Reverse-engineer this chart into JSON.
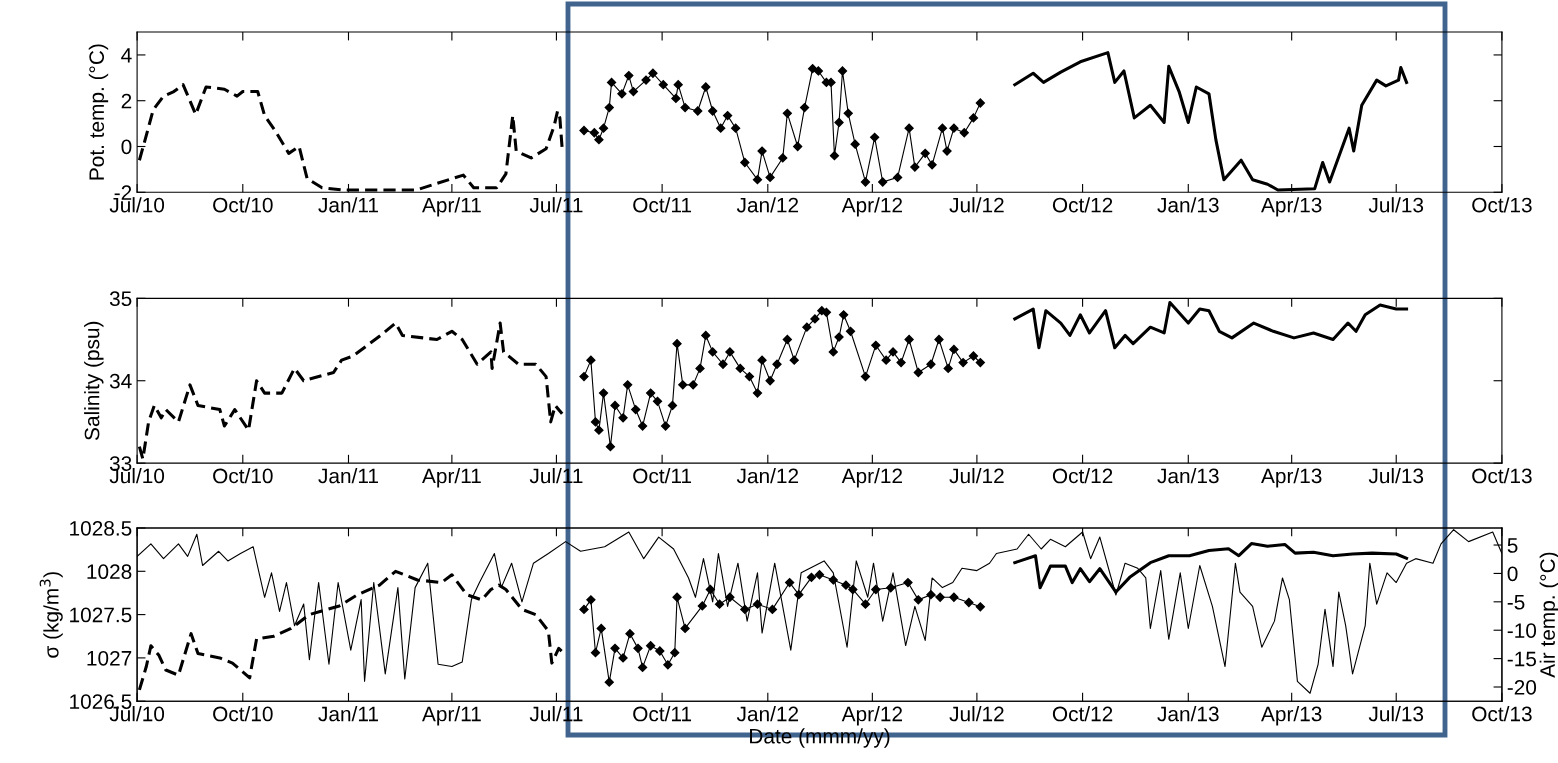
{
  "chart_data": [
    {
      "type": "line",
      "ylabel": "Pot. temp. (°C)",
      "xlim": [
        "2010-07-01",
        "2013-10-01"
      ],
      "ylim": [
        -2,
        5
      ],
      "yticks": [
        -2,
        0,
        2,
        4
      ],
      "xticks": [
        {
          "value": "2010-07-01",
          "label": "Jul/10"
        },
        {
          "value": "2010-10-01",
          "label": "Oct/10"
        },
        {
          "value": "2011-01-01",
          "label": "Jan/11"
        },
        {
          "value": "2011-04-01",
          "label": "Apr/11"
        },
        {
          "value": "2011-07-01",
          "label": "Jul/11"
        },
        {
          "value": "2011-10-01",
          "label": "Oct/11"
        },
        {
          "value": "2012-01-01",
          "label": "Jan/12"
        },
        {
          "value": "2012-04-01",
          "label": "Apr/12"
        },
        {
          "value": "2012-07-01",
          "label": "Jul/12"
        },
        {
          "value": "2012-10-01",
          "label": "Oct/12"
        },
        {
          "value": "2013-01-01",
          "label": "Jan/13"
        },
        {
          "value": "2013-04-01",
          "label": "Apr/13"
        },
        {
          "value": "2013-07-01",
          "label": "Jul/13"
        },
        {
          "value": "2013-10-01",
          "label": "Oct/13"
        }
      ],
      "grid": false,
      "legend": false,
      "series": [
        {
          "color": "#000000",
          "line_style": "dashed",
          "marker": "none",
          "x": [
            "2010-07-03",
            "2010-07-08",
            "2010-07-15",
            "2010-07-24",
            "2010-08-02",
            "2010-08-10",
            "2010-08-16",
            "2010-08-21",
            "2010-08-30",
            "2010-09-15",
            "2010-09-26",
            "2010-10-01",
            "2010-10-14",
            "2010-10-20",
            "2010-10-29",
            "2010-11-10",
            "2010-11-19",
            "2010-11-26",
            "2010-12-09",
            "2010-12-27",
            "2011-03-01",
            "2011-04-11",
            "2011-04-20",
            "2011-05-10",
            "2011-05-18",
            "2011-05-24",
            "2011-05-27",
            "2011-06-09",
            "2011-06-22",
            "2011-06-29",
            "2011-07-02",
            "2011-07-04",
            "2011-07-06"
          ],
          "values": [
            -0.6,
            0.3,
            1.6,
            2.2,
            2.4,
            2.7,
            2.0,
            1.4,
            2.6,
            2.5,
            2.2,
            2.4,
            2.4,
            1.35,
            0.7,
            -0.3,
            0,
            -1.4,
            -1.8,
            -1.9,
            -1.9,
            -1.25,
            -1.8,
            -1.8,
            -1.2,
            1.35,
            -0.2,
            -0.5,
            -0.1,
            0.9,
            1.55,
            1.25,
            -0.1
          ]
        },
        {
          "color": "#000000",
          "line_style": "solid",
          "marker": "diamond",
          "x": [
            "2011-07-25",
            "2011-08-03",
            "2011-08-07",
            "2011-08-11",
            "2011-08-16",
            "2011-08-18",
            "2011-08-27",
            "2011-09-02",
            "2011-09-06",
            "2011-09-17",
            "2011-09-23",
            "2011-10-02",
            "2011-10-13",
            "2011-10-15",
            "2011-10-21",
            "2011-11-01",
            "2011-11-08",
            "2011-11-14",
            "2011-11-21",
            "2011-11-27",
            "2011-12-04",
            "2011-12-12",
            "2011-12-23",
            "2011-12-27",
            "2012-01-03",
            "2012-01-14",
            "2012-01-18",
            "2012-01-27",
            "2012-02-02",
            "2012-02-09",
            "2012-02-14",
            "2012-02-21",
            "2012-02-25",
            "2012-02-28",
            "2012-03-03",
            "2012-03-06",
            "2012-03-11",
            "2012-03-17",
            "2012-03-26",
            "2012-04-03",
            "2012-04-10",
            "2012-04-23",
            "2012-05-03",
            "2012-05-08",
            "2012-05-17",
            "2012-05-23",
            "2012-06-01",
            "2012-06-05",
            "2012-06-11",
            "2012-06-20",
            "2012-06-28",
            "2012-07-04"
          ],
          "values": [
            0.7,
            0.6,
            0.3,
            0.8,
            1.7,
            2.8,
            2.3,
            3.1,
            2.4,
            2.9,
            3.2,
            2.7,
            2.1,
            2.7,
            1.7,
            1.55,
            2.6,
            1.55,
            0.8,
            1.35,
            0.8,
            -0.7,
            -1.45,
            -0.2,
            -1.35,
            -0.5,
            1.45,
            0,
            1.7,
            3.4,
            3.3,
            2.8,
            2.8,
            -0.4,
            1.05,
            3.3,
            1.45,
            0.1,
            -1.55,
            0.4,
            -1.55,
            -1.35,
            0.8,
            -0.9,
            -0.3,
            -0.8,
            0.8,
            -0.2,
            0.8,
            0.6,
            1.25,
            1.9
          ]
        },
        {
          "color": "#000000",
          "line_style": "solid",
          "marker": "none",
          "x": [
            "2012-08-03",
            "2012-08-19",
            "2012-08-28",
            "2012-09-12",
            "2012-09-29",
            "2012-10-23",
            "2012-10-29",
            "2012-11-06",
            "2012-11-15",
            "2012-11-29",
            "2012-12-11",
            "2012-12-15",
            "2012-12-24",
            "2013-01-01",
            "2013-01-08",
            "2013-01-19",
            "2013-01-25",
            "2013-02-01",
            "2013-02-16",
            "2013-02-26",
            "2013-03-11",
            "2013-03-20",
            "2013-04-21",
            "2013-04-28",
            "2013-05-04",
            "2013-05-21",
            "2013-05-25",
            "2013-06-01",
            "2013-06-14",
            "2013-06-22",
            "2013-07-03",
            "2013-07-05",
            "2013-07-10"
          ],
          "values": [
            2.7,
            3.2,
            2.8,
            3.25,
            3.7,
            4.1,
            2.8,
            3.3,
            1.25,
            1.8,
            1.05,
            3.5,
            2.4,
            1.05,
            2.6,
            2.3,
            0.3,
            -1.45,
            -0.6,
            -1.45,
            -1.65,
            -1.9,
            -1.85,
            -0.7,
            -1.55,
            0.8,
            -0.2,
            1.8,
            2.9,
            2.65,
            2.9,
            3.45,
            2.8
          ]
        }
      ]
    },
    {
      "type": "line",
      "ylabel": "Salinity (psu)",
      "xlim": [
        "2010-07-01",
        "2013-10-01"
      ],
      "ylim": [
        33,
        35
      ],
      "yticks": [
        33,
        34,
        35
      ],
      "xticks": [
        {
          "value": "2010-07-01",
          "label": "Jul/10"
        },
        {
          "value": "2010-10-01",
          "label": "Oct/10"
        },
        {
          "value": "2011-01-01",
          "label": "Jan/11"
        },
        {
          "value": "2011-04-01",
          "label": "Apr/11"
        },
        {
          "value": "2011-07-01",
          "label": "Jul/11"
        },
        {
          "value": "2011-10-01",
          "label": "Oct/11"
        },
        {
          "value": "2012-01-01",
          "label": "Jan/12"
        },
        {
          "value": "2012-04-01",
          "label": "Apr/12"
        },
        {
          "value": "2012-07-01",
          "label": "Jul/12"
        },
        {
          "value": "2012-10-01",
          "label": "Oct/12"
        },
        {
          "value": "2013-01-01",
          "label": "Jan/13"
        },
        {
          "value": "2013-04-01",
          "label": "Apr/13"
        },
        {
          "value": "2013-07-01",
          "label": "Jul/13"
        },
        {
          "value": "2013-10-01",
          "label": "Oct/13"
        }
      ],
      "grid": false,
      "legend": false,
      "series": [
        {
          "color": "#000000",
          "line_style": "dashed",
          "marker": "none",
          "x": [
            "2010-07-03",
            "2010-07-06",
            "2010-07-11",
            "2010-07-16",
            "2010-07-22",
            "2010-07-26",
            "2010-08-06",
            "2010-08-16",
            "2010-08-23",
            "2010-09-11",
            "2010-09-15",
            "2010-09-24",
            "2010-10-06",
            "2010-10-13",
            "2010-10-20",
            "2010-11-04",
            "2010-11-15",
            "2010-11-23",
            "2010-12-19",
            "2010-12-26",
            "2011-01-05",
            "2011-01-29",
            "2011-02-11",
            "2011-02-17",
            "2011-03-19",
            "2011-04-01",
            "2011-04-10",
            "2011-04-23",
            "2011-05-05",
            "2011-05-06",
            "2011-05-13",
            "2011-05-16",
            "2011-05-29",
            "2011-06-13",
            "2011-06-22",
            "2011-06-26",
            "2011-06-30",
            "2011-07-06"
          ],
          "values": [
            33.2,
            33.05,
            33.5,
            33.7,
            33.55,
            33.65,
            33.5,
            33.95,
            33.7,
            33.65,
            33.45,
            33.65,
            33.4,
            34.0,
            33.85,
            33.85,
            34.15,
            34.0,
            34.1,
            34.25,
            34.3,
            34.55,
            34.7,
            34.55,
            34.5,
            34.6,
            34.5,
            34.2,
            34.35,
            34.15,
            34.7,
            34.35,
            34.2,
            34.2,
            34.05,
            33.5,
            33.7,
            33.6
          ]
        },
        {
          "color": "#000000",
          "line_style": "solid",
          "marker": "diamond",
          "x": [
            "2011-07-25",
            "2011-07-31",
            "2011-08-04",
            "2011-08-07",
            "2011-08-11",
            "2011-08-17",
            "2011-08-21",
            "2011-08-28",
            "2011-09-01",
            "2011-09-08",
            "2011-09-14",
            "2011-09-21",
            "2011-09-27",
            "2011-10-04",
            "2011-10-10",
            "2011-10-14",
            "2011-10-19",
            "2011-10-28",
            "2011-11-03",
            "2011-11-08",
            "2011-11-14",
            "2011-11-23",
            "2011-11-29",
            "2011-12-08",
            "2011-12-16",
            "2011-12-23",
            "2011-12-27",
            "2012-01-03",
            "2012-01-09",
            "2012-01-18",
            "2012-01-24",
            "2012-02-04",
            "2012-02-11",
            "2012-02-17",
            "2012-02-21",
            "2012-02-27",
            "2012-03-03",
            "2012-03-07",
            "2012-03-13",
            "2012-03-26",
            "2012-04-04",
            "2012-04-13",
            "2012-04-19",
            "2012-04-26",
            "2012-05-03",
            "2012-05-11",
            "2012-05-22",
            "2012-05-29",
            "2012-06-06",
            "2012-06-11",
            "2012-06-19",
            "2012-06-28",
            "2012-07-04"
          ],
          "values": [
            34.05,
            34.25,
            33.5,
            33.4,
            33.85,
            33.2,
            33.7,
            33.55,
            33.95,
            33.65,
            33.45,
            33.85,
            33.75,
            33.45,
            33.7,
            34.45,
            33.95,
            33.95,
            34.15,
            34.55,
            34.35,
            34.2,
            34.35,
            34.15,
            34.05,
            33.85,
            34.25,
            34.0,
            34.2,
            34.5,
            34.25,
            34.65,
            34.75,
            34.85,
            34.83,
            34.35,
            34.53,
            34.8,
            34.6,
            34.05,
            34.43,
            34.25,
            34.35,
            34.22,
            34.5,
            34.1,
            34.2,
            34.5,
            34.15,
            34.38,
            34.22,
            34.3,
            34.22
          ]
        },
        {
          "color": "#000000",
          "line_style": "solid",
          "marker": "none",
          "x": [
            "2012-08-03",
            "2012-08-19",
            "2012-08-24",
            "2012-08-30",
            "2012-09-12",
            "2012-09-20",
            "2012-09-29",
            "2012-10-07",
            "2012-10-21",
            "2012-10-29",
            "2012-11-07",
            "2012-11-14",
            "2012-11-29",
            "2012-12-11",
            "2012-12-16",
            "2013-01-01",
            "2013-01-11",
            "2013-01-19",
            "2013-01-28",
            "2013-02-08",
            "2013-02-27",
            "2013-03-16",
            "2013-04-03",
            "2013-04-20",
            "2013-05-07",
            "2013-05-20",
            "2013-05-27",
            "2013-06-04",
            "2013-06-17",
            "2013-07-01",
            "2013-07-10"
          ],
          "values": [
            34.75,
            34.87,
            34.4,
            34.85,
            34.7,
            34.55,
            34.8,
            34.58,
            34.85,
            34.4,
            34.55,
            34.45,
            34.65,
            34.58,
            34.95,
            34.7,
            34.87,
            34.85,
            34.6,
            34.52,
            34.7,
            34.6,
            34.52,
            34.58,
            34.5,
            34.7,
            34.6,
            34.8,
            34.92,
            34.87,
            34.87
          ]
        }
      ]
    },
    {
      "type": "line",
      "xlabel": "Date (mmm/yy)",
      "ylabel": "σ (kg/m$^{3}$)",
      "y2label": "Air temp. (°C)",
      "xlim": [
        "2010-07-01",
        "2013-10-01"
      ],
      "ylim": [
        1026.5,
        1028.5
      ],
      "yticks": [
        1026.5,
        1027,
        1027.5,
        1028,
        1028.5
      ],
      "y2lim": [
        -22.5,
        8
      ],
      "y2ticks": [
        -20,
        -15,
        -10,
        -5,
        0,
        5
      ],
      "xticks": [
        {
          "value": "2010-07-01",
          "label": "Jul/10"
        },
        {
          "value": "2010-10-01",
          "label": "Oct/10"
        },
        {
          "value": "2011-01-01",
          "label": "Jan/11"
        },
        {
          "value": "2011-04-01",
          "label": "Apr/11"
        },
        {
          "value": "2011-07-01",
          "label": "Jul/11"
        },
        {
          "value": "2011-10-01",
          "label": "Oct/11"
        },
        {
          "value": "2012-01-01",
          "label": "Jan/12"
        },
        {
          "value": "2012-04-01",
          "label": "Apr/12"
        },
        {
          "value": "2012-07-01",
          "label": "Jul/12"
        },
        {
          "value": "2012-10-01",
          "label": "Oct/12"
        },
        {
          "value": "2013-01-01",
          "label": "Jan/13"
        },
        {
          "value": "2013-04-01",
          "label": "Apr/13"
        },
        {
          "value": "2013-07-01",
          "label": "Jul/13"
        },
        {
          "value": "2013-10-01",
          "label": "Oct/13"
        }
      ],
      "grid": false,
      "legend": false,
      "series": [
        {
          "color": "#000000",
          "line_style": "dashed",
          "marker": "none",
          "x": [
            "2010-07-03",
            "2010-07-09",
            "2010-07-13",
            "2010-07-20",
            "2010-07-26",
            "2010-08-06",
            "2010-08-17",
            "2010-08-23",
            "2010-09-11",
            "2010-09-22",
            "2010-10-07",
            "2010-10-13",
            "2010-10-28",
            "2010-11-12",
            "2010-11-28",
            "2010-12-24",
            "2011-01-09",
            "2011-01-28",
            "2011-02-11",
            "2011-03-02",
            "2011-03-23",
            "2011-04-01",
            "2011-04-14",
            "2011-04-27",
            "2011-05-05",
            "2011-05-12",
            "2011-05-18",
            "2011-06-01",
            "2011-06-13",
            "2011-06-24",
            "2011-06-27",
            "2011-07-03",
            "2011-07-07"
          ],
          "values": [
            1026.63,
            1026.9,
            1027.14,
            1027.03,
            1026.86,
            1026.8,
            1027.28,
            1027.05,
            1027.0,
            1026.94,
            1026.77,
            1027.22,
            1027.25,
            1027.34,
            1027.5,
            1027.6,
            1027.73,
            1027.84,
            1028.0,
            1027.9,
            1027.87,
            1027.96,
            1027.73,
            1027.67,
            1027.79,
            1027.84,
            1027.79,
            1027.56,
            1027.5,
            1027.31,
            1026.94,
            1027.11,
            1027.06
          ]
        },
        {
          "color": "#000000",
          "line_style": "solid",
          "marker": "diamond",
          "x": [
            "2011-07-25",
            "2011-07-31",
            "2011-08-04",
            "2011-08-09",
            "2011-08-16",
            "2011-08-21",
            "2011-08-28",
            "2011-09-03",
            "2011-09-10",
            "2011-09-14",
            "2011-09-21",
            "2011-09-29",
            "2011-10-06",
            "2011-10-12",
            "2011-10-14",
            "2011-10-21",
            "2011-11-05",
            "2011-11-12",
            "2011-11-20",
            "2011-11-29",
            "2011-12-12",
            "2011-12-23",
            "2012-01-05",
            "2012-01-20",
            "2012-01-28",
            "2012-02-08",
            "2012-02-15",
            "2012-02-27",
            "2012-03-09",
            "2012-03-15",
            "2012-03-26",
            "2012-04-04",
            "2012-04-17",
            "2012-05-02",
            "2012-05-11",
            "2012-05-22",
            "2012-05-30",
            "2012-06-11",
            "2012-06-24",
            "2012-07-04"
          ],
          "values": [
            1027.56,
            1027.67,
            1027.06,
            1027.34,
            1026.72,
            1027.11,
            1027.0,
            1027.28,
            1027.11,
            1026.89,
            1027.14,
            1027.08,
            1026.92,
            1027.06,
            1027.7,
            1027.34,
            1027.6,
            1027.79,
            1027.62,
            1027.7,
            1027.56,
            1027.62,
            1027.56,
            1027.87,
            1027.73,
            1027.93,
            1027.96,
            1027.9,
            1027.84,
            1027.79,
            1027.62,
            1027.79,
            1027.81,
            1027.87,
            1027.67,
            1027.73,
            1027.7,
            1027.7,
            1027.64,
            1027.59
          ]
        },
        {
          "color": "#000000",
          "line_style": "solid",
          "marker": "none",
          "x": [
            "2012-08-03",
            "2012-08-21",
            "2012-08-25",
            "2012-09-03",
            "2012-09-16",
            "2012-09-22",
            "2012-09-29",
            "2012-10-07",
            "2012-10-16",
            "2012-10-30",
            "2012-11-11",
            "2012-11-29",
            "2012-12-15",
            "2013-01-02",
            "2013-01-19",
            "2013-02-05",
            "2013-02-14",
            "2013-02-25",
            "2013-03-11",
            "2013-03-26",
            "2013-04-04",
            "2013-04-20",
            "2013-05-07",
            "2013-05-24",
            "2013-06-10",
            "2013-07-01",
            "2013-07-10"
          ],
          "values": [
            1028.1,
            1028.18,
            1027.81,
            1028.06,
            1028.06,
            1027.87,
            1028.03,
            1027.88,
            1028.03,
            1027.76,
            1027.93,
            1028.1,
            1028.18,
            1028.18,
            1028.24,
            1028.26,
            1028.18,
            1028.32,
            1028.29,
            1028.31,
            1028.21,
            1028.22,
            1028.18,
            1028.2,
            1028.21,
            1028.2,
            1028.15
          ]
        },
        {
          "color": "#000000",
          "line_style": "solid",
          "marker": "none",
          "axis": "y2",
          "x": [
            "2010-07-01",
            "2010-07-13",
            "2010-07-24",
            "2010-08-06",
            "2010-08-14",
            "2010-08-22",
            "2010-08-27",
            "2010-09-10",
            "2010-09-18",
            "2010-09-29",
            "2010-10-10",
            "2010-10-20",
            "2010-10-26",
            "2010-11-02",
            "2010-11-08",
            "2010-11-15",
            "2010-11-23",
            "2010-11-28",
            "2010-12-06",
            "2010-12-15",
            "2010-12-23",
            "2011-01-03",
            "2011-01-12",
            "2011-01-15",
            "2011-01-23",
            "2011-02-02",
            "2011-02-13",
            "2011-02-19",
            "2011-02-28",
            "2011-03-11",
            "2011-03-20",
            "2011-04-01",
            "2011-04-10",
            "2011-04-18",
            "2011-04-25",
            "2011-05-08",
            "2011-05-14",
            "2011-05-23",
            "2011-06-01",
            "2011-06-11",
            "2011-06-24",
            "2011-07-09",
            "2011-07-22",
            "2011-08-12",
            "2011-09-02",
            "2011-09-15",
            "2011-09-28",
            "2011-10-11",
            "2011-10-24",
            "2011-10-30",
            "2011-11-06",
            "2011-11-14",
            "2011-11-19",
            "2011-11-27",
            "2011-12-06",
            "2011-12-14",
            "2011-12-23",
            "2011-12-27",
            "2012-01-07",
            "2012-01-21",
            "2012-01-30",
            "2012-02-19",
            "2012-02-27",
            "2012-03-10",
            "2012-03-18",
            "2012-03-28",
            "2012-04-02",
            "2012-04-10",
            "2012-04-19",
            "2012-04-30",
            "2012-05-08",
            "2012-05-17",
            "2012-05-23",
            "2012-06-01",
            "2012-06-10",
            "2012-06-18",
            "2012-07-01",
            "2012-07-12",
            "2012-07-18",
            "2012-08-05",
            "2012-08-15",
            "2012-08-26",
            "2012-09-03",
            "2012-09-16",
            "2012-10-01",
            "2012-10-08",
            "2012-10-16",
            "2012-10-30",
            "2012-11-07",
            "2012-11-18",
            "2012-11-25",
            "2012-11-29",
            "2012-12-08",
            "2012-12-15",
            "2012-12-25",
            "2013-01-01",
            "2013-01-11",
            "2013-01-22",
            "2013-02-02",
            "2013-02-11",
            "2013-02-15",
            "2013-02-26",
            "2013-03-06",
            "2013-03-17",
            "2013-03-24",
            "2013-03-30",
            "2013-04-06",
            "2013-04-17",
            "2013-04-24",
            "2013-04-30",
            "2013-05-07",
            "2013-05-12",
            "2013-05-18",
            "2013-05-24",
            "2013-06-04",
            "2013-06-08",
            "2013-06-14",
            "2013-06-23",
            "2013-07-01",
            "2013-07-10",
            "2013-07-18",
            "2013-08-02",
            "2013-08-09",
            "2013-08-20",
            "2013-09-02",
            "2013-09-23",
            "2013-10-01"
          ],
          "values": [
            3.0,
            5.2,
            2.6,
            5.2,
            3.0,
            6.9,
            1.4,
            3.9,
            2.2,
            3.5,
            4.7,
            -4.2,
            0.1,
            -6.7,
            -1.6,
            -9.2,
            -5.4,
            -15.2,
            -1.6,
            -16.0,
            -1.6,
            -13.5,
            -4.6,
            -19,
            -1.6,
            -17.7,
            -2.5,
            -18.6,
            -2.5,
            1.8,
            -16.0,
            -16.4,
            -15.6,
            -4.6,
            -1.6,
            3.5,
            -2.5,
            1.8,
            -5.0,
            1.8,
            3.5,
            5.6,
            3.9,
            4.7,
            7.3,
            2.6,
            6.4,
            4.3,
            -0.8,
            -4.2,
            2.6,
            -5.0,
            3.5,
            -5.8,
            1.8,
            -8.4,
            0.1,
            -10.5,
            1.8,
            -13.5,
            0.1,
            2.2,
            0.1,
            -13.0,
            2.2,
            -4.2,
            1.8,
            -8.4,
            0.1,
            -12.7,
            -5.8,
            -11.8,
            -0.8,
            -2.5,
            -1.6,
            0.9,
            0.5,
            1.8,
            3.5,
            4.3,
            6.9,
            4.3,
            6.0,
            4.7,
            7.3,
            2.6,
            6.4,
            -3.8,
            1.8,
            0.9,
            -0.8,
            -9.7,
            0.5,
            -11.6,
            0.1,
            -9.7,
            1.4,
            -5.8,
            -16.4,
            1.8,
            -3.3,
            -5.8,
            -13.0,
            -8.4,
            -0.8,
            -4.6,
            -19.0,
            -21.1,
            -16.0,
            -6.3,
            -16.4,
            -3.3,
            -9.2,
            -17.7,
            -9.2,
            1.8,
            -5.4,
            0.1,
            -1.6,
            1.8,
            2.6,
            1.8,
            5.2,
            7.7,
            5.6,
            7.3,
            3.5
          ]
        }
      ]
    }
  ]
}
